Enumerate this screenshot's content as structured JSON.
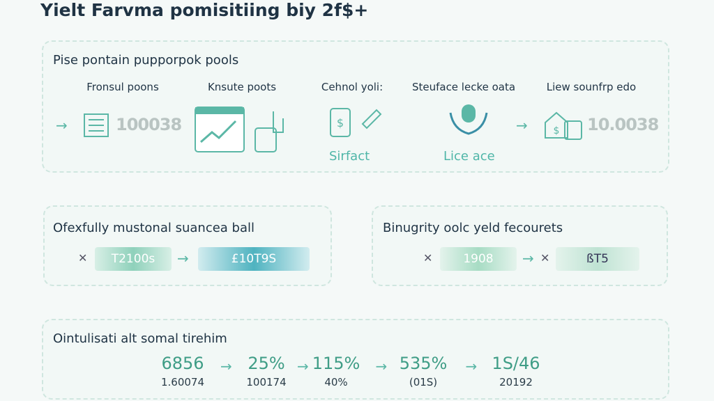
{
  "header": {
    "title": "Yielt Farvma pomisitiing biy 2f$+"
  },
  "pools_panel": {
    "title": "Pise pontain pupporpok pools",
    "columns": [
      "Fronsul poons",
      "Knsute poots",
      "Cehnol yoli:",
      "Steuface lecke oata",
      "Liew sounfrp edo"
    ],
    "left_value": "100038",
    "icon_labels": [
      "Sirfact",
      "Lice ace"
    ],
    "right_value": "10.0038"
  },
  "left_panel": {
    "title": "Ofexfully mustonal suancea ball",
    "pills": [
      "T2100s",
      "£10T9S"
    ]
  },
  "right_panel": {
    "title": "Binugrity oolc yeld fecourets",
    "pills": [
      "1908",
      "ßT5"
    ]
  },
  "stats_panel": {
    "title": "Ointulisati alt somal tirehim",
    "stats": [
      [
        "6856",
        "1.60074"
      ],
      [
        "25%",
        "100174"
      ],
      [
        "115%",
        "40%"
      ],
      [
        "535%",
        "(01S)"
      ],
      [
        "1S/46",
        "20192"
      ]
    ]
  }
}
